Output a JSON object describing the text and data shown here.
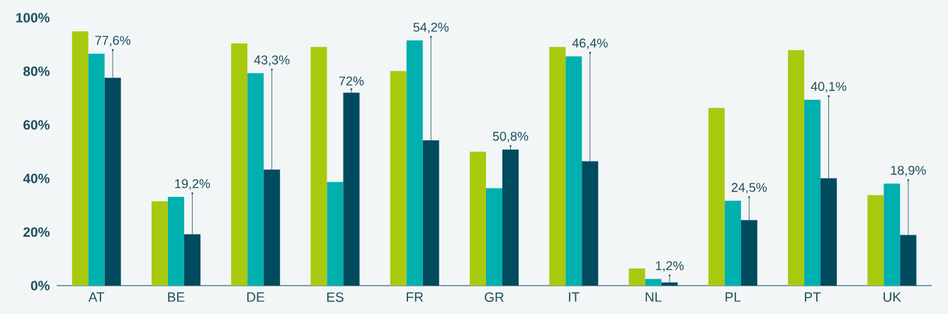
{
  "chart_data": {
    "type": "bar",
    "categories": [
      "AT",
      "BE",
      "DE",
      "ES",
      "FR",
      "GR",
      "IT",
      "NL",
      "PL",
      "PT",
      "UK"
    ],
    "series": [
      {
        "color": "#a9c90f",
        "values": [
          94.9,
          31.5,
          90.4,
          89.1,
          80.1,
          50.0,
          89.1,
          6.4,
          66.3,
          87.9,
          33.8
        ]
      },
      {
        "color": "#00b0ae",
        "values": [
          86.6,
          33.1,
          79.3,
          38.7,
          91.5,
          36.4,
          85.6,
          2.5,
          31.7,
          69.4,
          38.1
        ]
      },
      {
        "color": "#004b5e",
        "values": [
          77.6,
          19.2,
          43.3,
          72,
          54.2,
          50.8,
          46.4,
          1.2,
          24.5,
          40.1,
          18.9
        ],
        "value_labels": [
          "77,6%",
          "19,2%",
          "43,3%",
          "72%",
          "54,2%",
          "50,8%",
          "46,4%",
          "1,2%",
          "24,5%",
          "40,1%",
          "18,9%"
        ]
      }
    ],
    "ylim": [
      0,
      100
    ],
    "yticks": [
      {
        "value": 0,
        "label": "0%"
      },
      {
        "value": 20,
        "label": "20%"
      },
      {
        "value": 40,
        "label": "40%"
      },
      {
        "value": 60,
        "label": "60%"
      },
      {
        "value": 80,
        "label": "80%"
      },
      {
        "value": 100,
        "label": "100%"
      }
    ]
  }
}
